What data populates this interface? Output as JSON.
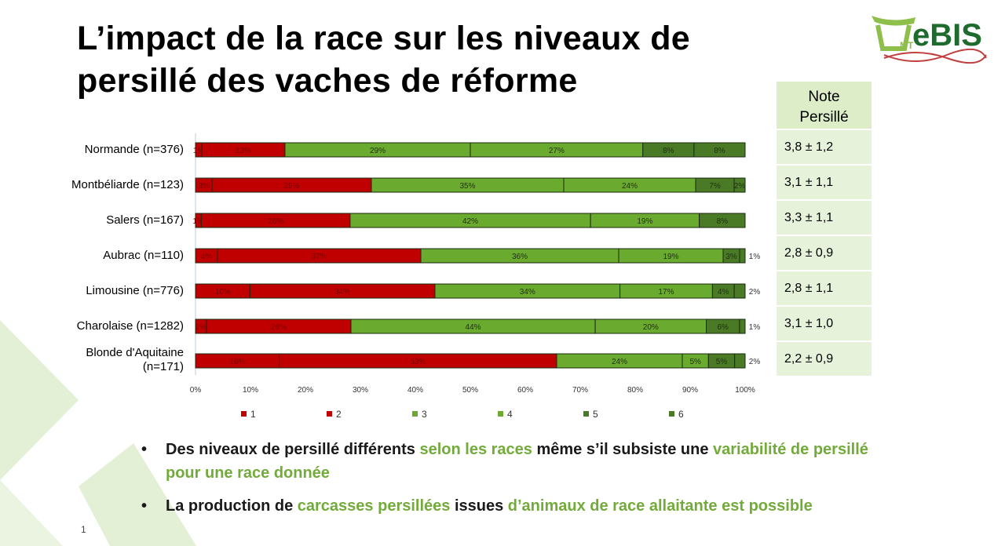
{
  "title_line1": "L’impact de la race sur les niveaux de",
  "title_line2": "persillé des vaches de réforme",
  "logo_text": "UMT eBIS",
  "colors": {
    "c1": "#c00000",
    "c2": "#c00000",
    "c3": "#6aaa2e",
    "c4": "#6aaa2e",
    "c5": "#4b7a27",
    "c6": "#4b7a27"
  },
  "chart_data": {
    "type": "bar",
    "orientation": "horizontal",
    "stacked": "100%",
    "categories": [
      "Normande (n=376)",
      "Montbéliarde (n=123)",
      "Salers (n=167)",
      "Aubrac (n=110)",
      "Limousine (n=776)",
      "Charolaise (n=1282)",
      "Blonde d'Aquitaine (n=171)"
    ],
    "series": [
      {
        "name": "1",
        "values": [
          1,
          3,
          1,
          4,
          10,
          2,
          16
        ]
      },
      {
        "name": "2",
        "values": [
          13,
          29,
          26,
          37,
          34,
          26,
          53
        ]
      },
      {
        "name": "3",
        "values": [
          29,
          35,
          42,
          36,
          34,
          44,
          24
        ]
      },
      {
        "name": "4",
        "values": [
          27,
          24,
          19,
          19,
          17,
          20,
          5
        ]
      },
      {
        "name": "5",
        "values": [
          8,
          7,
          8,
          3,
          4,
          6,
          5
        ]
      },
      {
        "name": "6",
        "values": [
          8,
          2,
          0,
          1,
          2,
          1,
          2
        ]
      }
    ],
    "xticks": [
      "0%",
      "10%",
      "20%",
      "30%",
      "40%",
      "50%",
      "60%",
      "70%",
      "80%",
      "90%",
      "100%"
    ],
    "xlim": [
      0,
      100
    ],
    "legend": "bottom"
  },
  "table": {
    "header": "Note Persillé",
    "header_l1": "Note",
    "header_l2": "Persillé",
    "rows": [
      "3,8 ± 1,2",
      "3,1 ± 1,1",
      "3,3 ± 1,1",
      "2,8 ± 0,9",
      "2,8 ± 1,1",
      "3,1 ± 1,0",
      "2,2 ± 0,9"
    ]
  },
  "bullets": [
    {
      "dot": "•",
      "p1": "Des niveaux de persillé différents ",
      "g1": "selon les races",
      "p2": " même s’il subsiste une ",
      "g2": "variabilité de persillé pour une race donnée"
    },
    {
      "dot": "•",
      "p1": "La production de ",
      "g1": "carcasses persillées",
      "p2": " issues ",
      "g2": "d’animaux de race allaitante est possible"
    }
  ],
  "page_number": "1"
}
